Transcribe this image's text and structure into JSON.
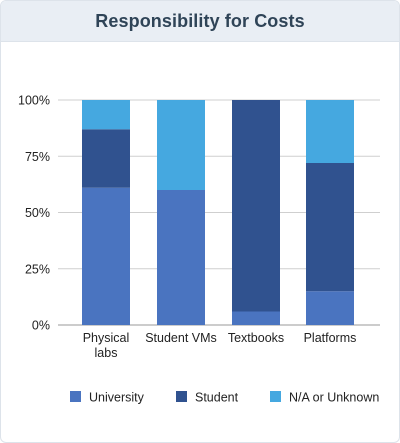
{
  "header": {
    "title": "Responsibility for Costs"
  },
  "chart_data": {
    "type": "bar",
    "stacked": true,
    "title": "Responsibility for Costs",
    "categories": [
      [
        "Physical",
        "labs"
      ],
      [
        "Student VMs"
      ],
      [
        "Textbooks"
      ],
      [
        "Platforms"
      ]
    ],
    "series": [
      {
        "name": "University",
        "color": "#4a74c0",
        "values": [
          61,
          60,
          6,
          15
        ]
      },
      {
        "name": "Student",
        "color": "#30528f",
        "values": [
          26,
          0,
          94,
          57
        ]
      },
      {
        "name": "N/A or Unknown",
        "color": "#45a8e0",
        "values": [
          13,
          40,
          0,
          28
        ]
      }
    ],
    "y_ticks": [
      "0%",
      "25%",
      "50%",
      "75%",
      "100%"
    ],
    "ylim": [
      0,
      100
    ],
    "grid": true,
    "legend_position": "bottom"
  }
}
